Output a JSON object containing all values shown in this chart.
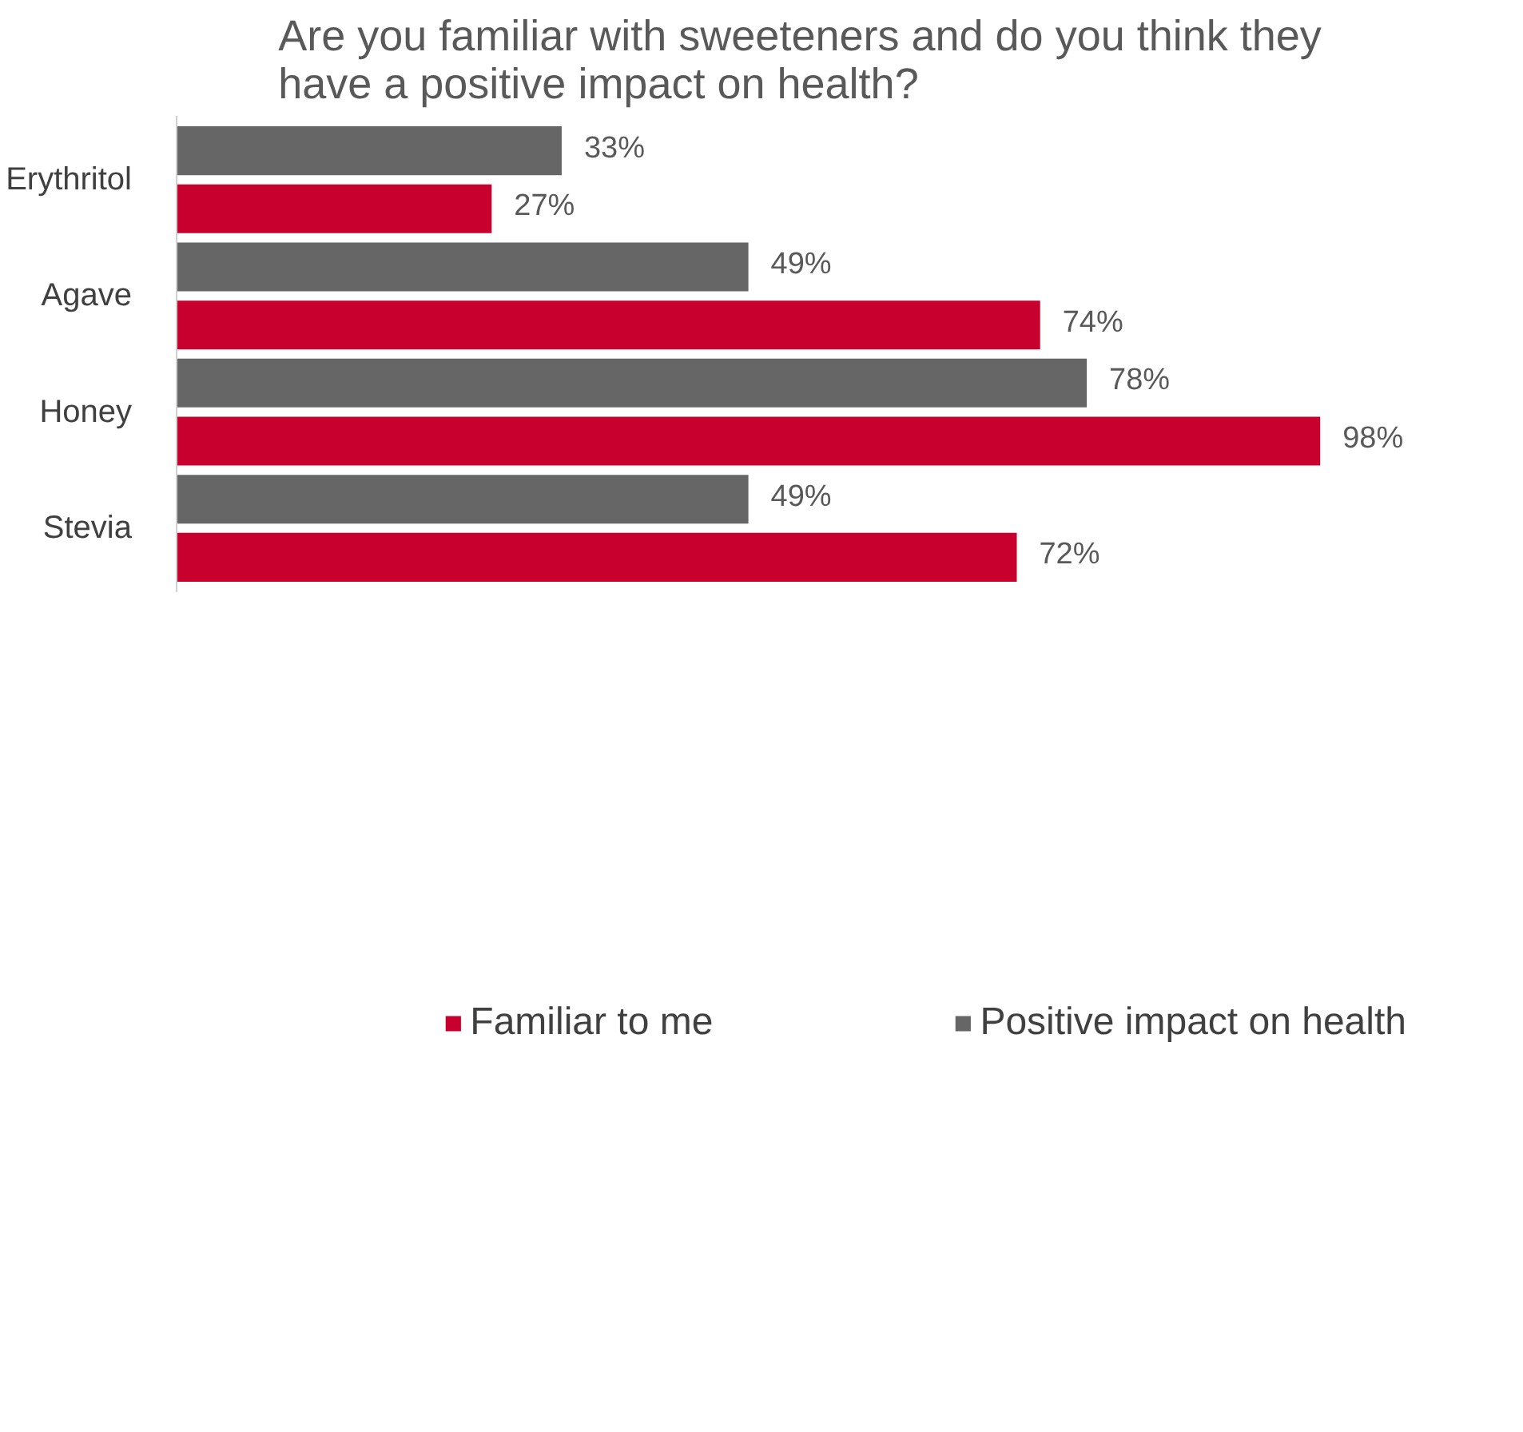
{
  "chart_data": {
    "type": "bar",
    "orientation": "horizontal",
    "title": "Are you familiar with sweeteners and do you think they\nhave a positive impact on health?",
    "categories": [
      "Erythritol",
      "Agave",
      "Honey",
      "Stevia"
    ],
    "series": [
      {
        "name": "Familiar to me",
        "color": "#c8002d",
        "values": [
          27,
          74,
          98,
          72
        ],
        "value_labels": [
          "27%",
          "74%",
          "98%",
          "72%"
        ]
      },
      {
        "name": "Positive impact on health",
        "color": "#666666",
        "values": [
          33,
          49,
          78,
          49
        ],
        "value_labels": [
          "33%",
          "49%",
          "78%",
          "49%"
        ]
      }
    ],
    "legend": "bottom",
    "grid": false
  }
}
